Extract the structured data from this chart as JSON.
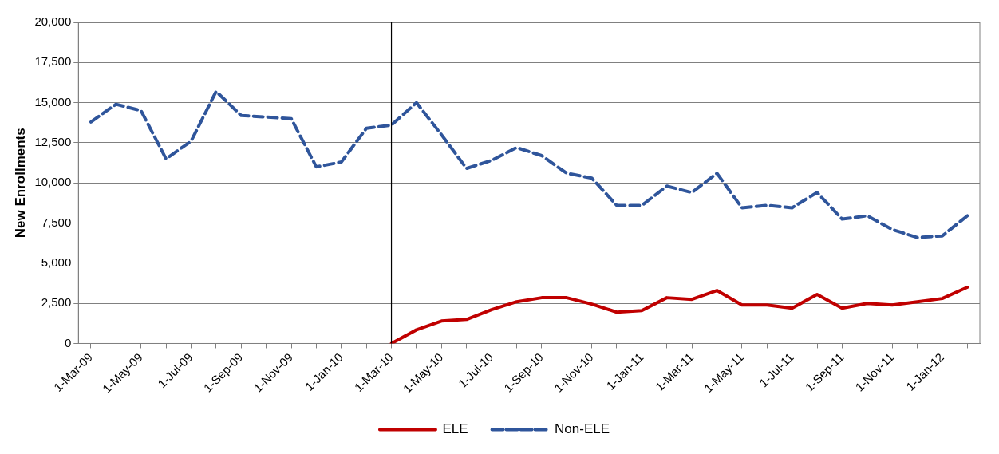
{
  "chart_data": {
    "type": "line",
    "ylabel": "New Enrollments",
    "categories": [
      "1-Mar-09",
      null,
      "1-May-09",
      null,
      "1-Jul-09",
      null,
      "1-Sep-09",
      null,
      "1-Nov-09",
      null,
      "1-Jan-10",
      null,
      "1-Mar-10",
      null,
      "1-May-10",
      null,
      "1-Jul-10",
      null,
      "1-Sep-10",
      null,
      "1-Nov-10",
      null,
      "1-Jan-11",
      null,
      "1-Mar-11",
      null,
      "1-May-11",
      null,
      "1-Jul-11",
      null,
      "1-Sep-11",
      null,
      "1-Nov-11",
      null,
      "1-Jan-12",
      null
    ],
    "series": [
      {
        "name": "ELE",
        "color": "#c00000",
        "line_style": "solid",
        "values": [
          null,
          null,
          null,
          null,
          null,
          null,
          null,
          null,
          null,
          null,
          null,
          null,
          0,
          850,
          1400,
          1500,
          2100,
          2600,
          2850,
          2850,
          2450,
          1950,
          2050,
          2850,
          2750,
          3300,
          2400,
          2400,
          2200,
          3050,
          2200,
          2500,
          2400,
          2600,
          2800,
          3500
        ]
      },
      {
        "name": "Non-ELE",
        "color": "#2f559b",
        "line_style": "dashed",
        "values": [
          13800,
          14900,
          14500,
          11500,
          12600,
          15700,
          14200,
          14100,
          14000,
          11000,
          11300,
          13400,
          13600,
          15000,
          13000,
          10900,
          11400,
          12200,
          11700,
          10600,
          10300,
          8600,
          8600,
          9800,
          9400,
          10600,
          8450,
          8600,
          8450,
          9400,
          7750,
          7950,
          7100,
          6600,
          6700,
          7950
        ]
      }
    ],
    "ylim": [
      0,
      20000
    ],
    "yticks": [
      0,
      {
        "value": 2500,
        "label": "2,500"
      },
      {
        "value": 5000,
        "label": "5,000"
      },
      {
        "value": 7500,
        "label": "7,500"
      },
      {
        "value": 10000,
        "label": "10,000"
      },
      {
        "value": 12500,
        "label": "12,500"
      },
      {
        "value": 15000,
        "label": "15,000"
      },
      {
        "value": 17500,
        "label": "17,500"
      },
      {
        "value": 20000,
        "label": "20,000"
      }
    ],
    "ref_lines": [
      {
        "axis": "x",
        "value": "1-Mar-10",
        "color": "#000000"
      }
    ],
    "grid": "y",
    "legend": "bottom",
    "marker": "none"
  }
}
